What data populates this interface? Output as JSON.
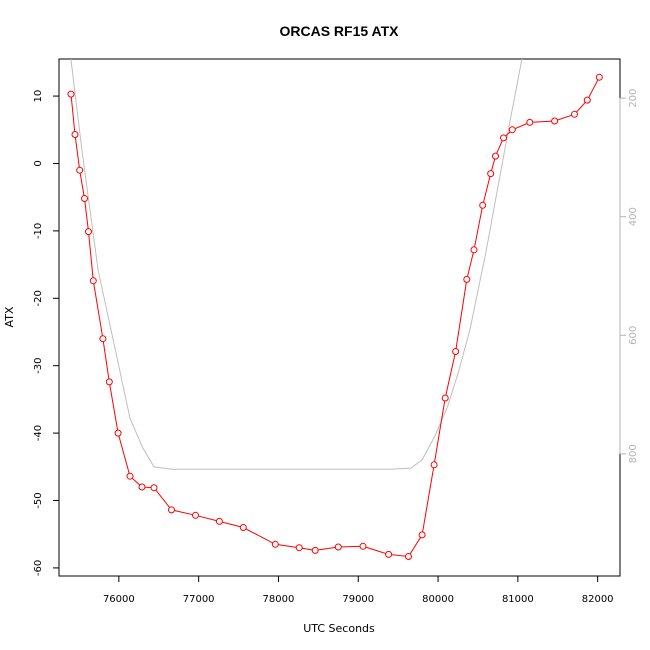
{
  "chart_data": {
    "type": "line",
    "title": "ORCAS RF15 ATX",
    "xlabel": "UTC Seconds",
    "ylabel": "ATX",
    "xlim": [
      75250,
      82280
    ],
    "ylim": [
      -61.2,
      15.5
    ],
    "y2lim": [
      1006,
      134
    ],
    "y2_reversed": true,
    "grid": false,
    "x_ticks": [
      76000,
      77000,
      78000,
      79000,
      80000,
      81000,
      82000
    ],
    "y_ticks": [
      -60,
      -50,
      -40,
      -30,
      -20,
      -10,
      0,
      10
    ],
    "y2_ticks": [
      200,
      400,
      600,
      800
    ],
    "series": [
      {
        "color": "#ff0000",
        "marker": "open-circle",
        "x": [
          75400,
          75450,
          75510,
          75570,
          75620,
          75680,
          75800,
          75880,
          75990,
          76140,
          76290,
          76440,
          76660,
          76960,
          77260,
          77560,
          77960,
          78260,
          78460,
          78750,
          79060,
          79380,
          79630,
          79800,
          79950,
          80090,
          80220,
          80360,
          80450,
          80560,
          80660,
          80720,
          80820,
          80930,
          81150,
          81460,
          81710,
          81870,
          82020
        ],
        "y": [
          10.3,
          4.3,
          -1.0,
          -5.2,
          -10.1,
          -17.4,
          -26.0,
          -32.4,
          -40.0,
          -46.4,
          -48.0,
          -48.1,
          -51.4,
          -52.2,
          -53.1,
          -54.0,
          -56.5,
          -57.0,
          -57.4,
          -56.9,
          -56.8,
          -58.0,
          -58.3,
          -55.1,
          -44.7,
          -34.8,
          -27.9,
          -17.2,
          -12.8,
          -6.2,
          -1.5,
          1.1,
          3.8,
          5.0,
          6.1,
          6.3,
          7.3,
          9.4,
          12.8
        ]
      },
      {
        "color": "#bebebe",
        "axis": "right",
        "x": [
          75350,
          75540,
          75740,
          75980,
          76140,
          76300,
          76440,
          76660,
          77000,
          78000,
          79000,
          79400,
          79660,
          79800,
          79960,
          80120,
          80260,
          80400,
          80600,
          80900,
          81100,
          81300
        ],
        "y": [
          80,
          290,
          490,
          640,
          740,
          790,
          822,
          826,
          826,
          826,
          826,
          826,
          824,
          810,
          770,
          720,
          660,
          590,
          460,
          240,
          100,
          -30
        ]
      }
    ]
  }
}
